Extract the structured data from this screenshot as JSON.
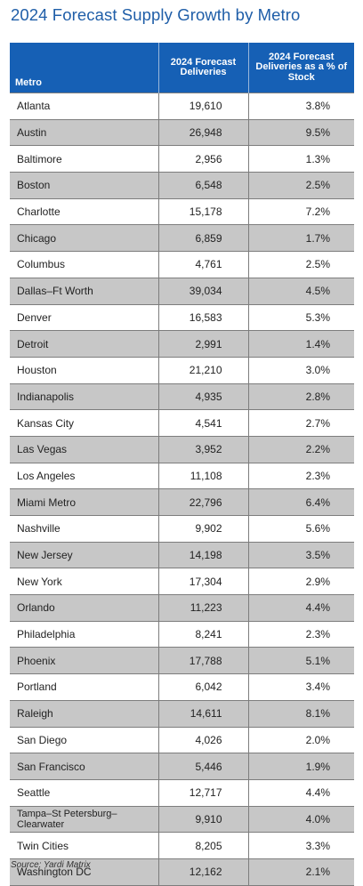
{
  "title": "2024 Forecast Supply Growth by Metro",
  "table": {
    "headers": {
      "metro": "Metro",
      "deliveries": "2024 Forecast Deliveries",
      "pct_stock": "2024 Forecast Deliveries as a % of Stock"
    },
    "rows": [
      {
        "metro": "Atlanta",
        "deliveries": "19,610",
        "pct_stock": "3.8%"
      },
      {
        "metro": "Austin",
        "deliveries": "26,948",
        "pct_stock": "9.5%"
      },
      {
        "metro": "Baltimore",
        "deliveries": "2,956",
        "pct_stock": "1.3%"
      },
      {
        "metro": "Boston",
        "deliveries": "6,548",
        "pct_stock": "2.5%"
      },
      {
        "metro": "Charlotte",
        "deliveries": "15,178",
        "pct_stock": "7.2%"
      },
      {
        "metro": "Chicago",
        "deliveries": "6,859",
        "pct_stock": "1.7%"
      },
      {
        "metro": "Columbus",
        "deliveries": "4,761",
        "pct_stock": "2.5%"
      },
      {
        "metro": "Dallas–Ft Worth",
        "deliveries": "39,034",
        "pct_stock": "4.5%"
      },
      {
        "metro": "Denver",
        "deliveries": "16,583",
        "pct_stock": "5.3%"
      },
      {
        "metro": "Detroit",
        "deliveries": "2,991",
        "pct_stock": "1.4%"
      },
      {
        "metro": "Houston",
        "deliveries": "21,210",
        "pct_stock": "3.0%"
      },
      {
        "metro": "Indianapolis",
        "deliveries": "4,935",
        "pct_stock": "2.8%"
      },
      {
        "metro": "Kansas City",
        "deliveries": "4,541",
        "pct_stock": "2.7%"
      },
      {
        "metro": "Las Vegas",
        "deliveries": "3,952",
        "pct_stock": "2.2%"
      },
      {
        "metro": "Los Angeles",
        "deliveries": "11,108",
        "pct_stock": "2.3%"
      },
      {
        "metro": "Miami Metro",
        "deliveries": "22,796",
        "pct_stock": "6.4%"
      },
      {
        "metro": "Nashville",
        "deliveries": "9,902",
        "pct_stock": "5.6%"
      },
      {
        "metro": "New Jersey",
        "deliveries": "14,198",
        "pct_stock": "3.5%"
      },
      {
        "metro": "New York",
        "deliveries": "17,304",
        "pct_stock": "2.9%"
      },
      {
        "metro": "Orlando",
        "deliveries": "11,223",
        "pct_stock": "4.4%"
      },
      {
        "metro": "Philadelphia",
        "deliveries": "8,241",
        "pct_stock": "2.3%"
      },
      {
        "metro": "Phoenix",
        "deliveries": "17,788",
        "pct_stock": "5.1%"
      },
      {
        "metro": "Portland",
        "deliveries": "6,042",
        "pct_stock": "3.4%"
      },
      {
        "metro": "Raleigh",
        "deliveries": "14,611",
        "pct_stock": "8.1%"
      },
      {
        "metro": "San Diego",
        "deliveries": "4,026",
        "pct_stock": "2.0%"
      },
      {
        "metro": "San Francisco",
        "deliveries": "5,446",
        "pct_stock": "1.9%"
      },
      {
        "metro": "Seattle",
        "deliveries": "12,717",
        "pct_stock": "4.4%"
      },
      {
        "metro": "Tampa–St Petersburg–Clearwater",
        "deliveries": "9,910",
        "pct_stock": "4.0%"
      },
      {
        "metro": "Twin Cities",
        "deliveries": "8,205",
        "pct_stock": "3.3%"
      },
      {
        "metro": "Washington DC",
        "deliveries": "12,162",
        "pct_stock": "2.1%"
      }
    ]
  },
  "source": "Source: Yardi Matrix",
  "colors": {
    "title": "#1f5ea8",
    "header_bg": "#1660b5",
    "shaded_row": "#c7c7c7"
  }
}
